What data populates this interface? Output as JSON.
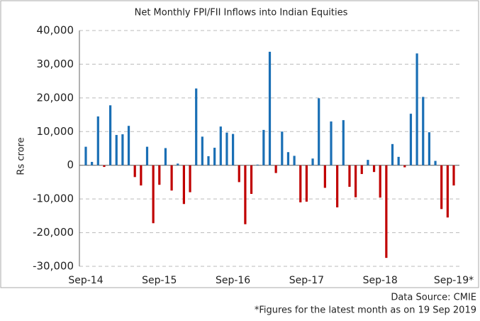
{
  "chart_data": {
    "type": "bar",
    "title": "Net Monthly FPI/FII Inflows into Indian Equities",
    "y_label": "Rs crore",
    "categories": [
      "Sep-14",
      null,
      null,
      null,
      null,
      null,
      null,
      null,
      null,
      null,
      null,
      null,
      "Sep-15",
      null,
      null,
      null,
      null,
      null,
      null,
      null,
      null,
      null,
      null,
      null,
      "Sep-16",
      null,
      null,
      null,
      null,
      null,
      null,
      null,
      null,
      null,
      null,
      null,
      "Sep-17",
      null,
      null,
      null,
      null,
      null,
      null,
      null,
      null,
      null,
      null,
      null,
      "Sep-18",
      null,
      null,
      null,
      null,
      null,
      null,
      null,
      null,
      null,
      null,
      null,
      "Sep-19*"
    ],
    "values": [
      5500,
      1000,
      14500,
      -500,
      17800,
      9000,
      9200,
      11700,
      -3500,
      -6000,
      5500,
      -17200,
      -5800,
      5100,
      -7500,
      500,
      -11500,
      -8000,
      22800,
      8500,
      2700,
      5200,
      11500,
      9700,
      9300,
      -5000,
      -17500,
      -8500,
      200,
      10500,
      33700,
      -2300,
      10000,
      3900,
      2800,
      -11000,
      -10800,
      2000,
      19900,
      -6700,
      13000,
      -12500,
      13400,
      -6400,
      -9500,
      -2600,
      1600,
      -2000,
      -9600,
      -27500,
      6300,
      2500,
      -600,
      15300,
      33200,
      20300,
      9800,
      1300,
      -13000,
      -15500,
      -6000
    ],
    "colors": {
      "positive": "#1a6fb5",
      "negative": "#c00000"
    },
    "ylim": [
      -30000,
      40000
    ],
    "yticks": [
      {
        "value": -30000,
        "label": "-30,000"
      },
      {
        "value": -20000,
        "label": "-20,000"
      },
      {
        "value": -10000,
        "label": "-10,000"
      },
      0,
      {
        "value": 10000,
        "label": "10,000"
      },
      {
        "value": 20000,
        "label": "20,000"
      },
      {
        "value": 30000,
        "label": "30,000"
      },
      {
        "value": 40000,
        "label": "40,000"
      }
    ],
    "grid": true,
    "source": "Data Source: CMIE",
    "footnote": "*Figures for the latest month as on 19 Sep 2019"
  }
}
